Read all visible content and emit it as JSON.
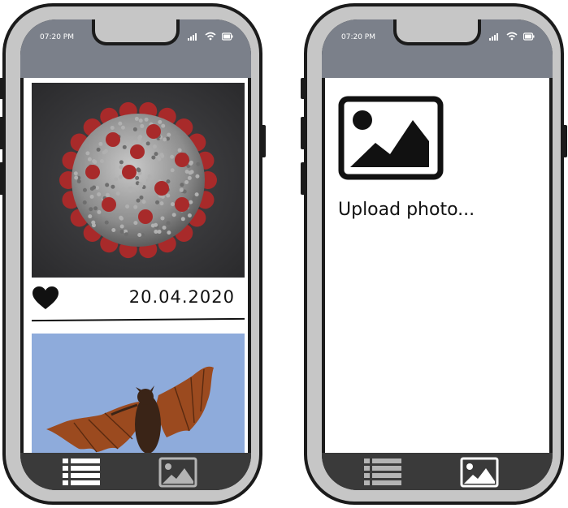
{
  "phones": [
    {
      "status": {
        "time": "07:20 PM"
      },
      "feed": {
        "posts": [
          {
            "image_name": "coronavirus-photo",
            "date": "20.04.2020",
            "liked": true
          },
          {
            "image_name": "flying-bat-photo"
          }
        ]
      },
      "tabbar": {
        "active": "feed"
      }
    },
    {
      "status": {
        "time": "07:20 PM"
      },
      "upload": {
        "label": "Upload photo..."
      },
      "tabbar": {
        "active": "upload"
      }
    }
  ],
  "colors": {
    "frame": "#c6c6c6",
    "outline": "#1b1b1b",
    "statusbar": "#7b808a",
    "tabbar": "#3a3a3a",
    "tab_icon_inactive": "#b4b4b4",
    "sky": "#8eabdb",
    "virus_red": "#a82a2a"
  },
  "icons": [
    "signal-icon",
    "wifi-icon",
    "battery-icon",
    "heart-icon",
    "list-icon",
    "image-icon"
  ]
}
